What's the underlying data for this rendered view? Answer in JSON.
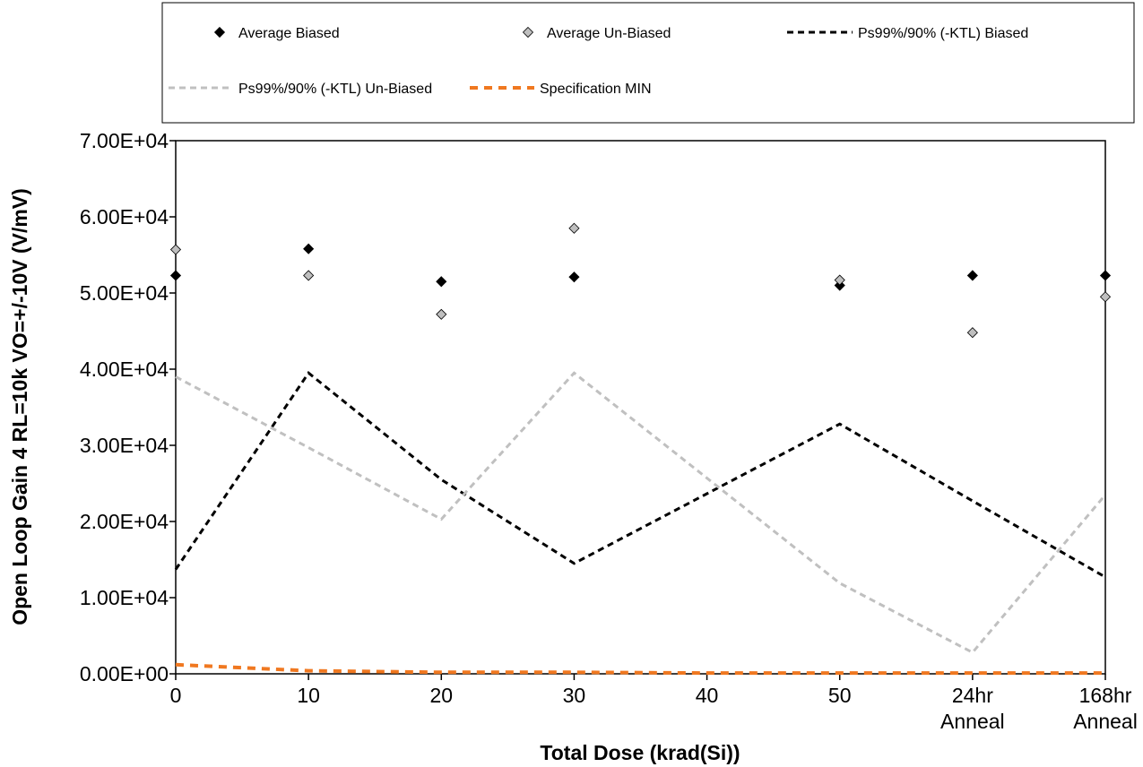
{
  "chart_data": {
    "type": "line",
    "xlabel": "Total Dose (krad(Si))",
    "ylabel": "Open Loop Gain 4 RL=10k VO=+/-10V (V/mV)",
    "categories": [
      [
        "0"
      ],
      [
        "10"
      ],
      [
        "20"
      ],
      [
        "30"
      ],
      [
        "40"
      ],
      [
        "50"
      ],
      [
        "24hr",
        "Anneal"
      ],
      [
        "168hr",
        "Anneal"
      ]
    ],
    "x_positions": [
      0,
      10,
      20,
      30,
      40,
      50,
      60,
      70
    ],
    "xlim": [
      0,
      70
    ],
    "ylim": [
      0,
      70000
    ],
    "yticks": [
      "0.00E+00",
      "1.00E+04",
      "2.00E+04",
      "3.00E+04",
      "4.00E+04",
      "5.00E+04",
      "6.00E+04",
      "7.00E+04"
    ],
    "ytick_values": [
      0,
      10000,
      20000,
      30000,
      40000,
      50000,
      60000,
      70000
    ],
    "grid": false,
    "legend_position": "top",
    "series": [
      {
        "name": "Average Biased",
        "style": "marker",
        "color": "#000000",
        "x": [
          0,
          10,
          20,
          30,
          50,
          60,
          70
        ],
        "y": [
          52300,
          55800,
          51500,
          52100,
          51000,
          52300,
          52300
        ]
      },
      {
        "name": "Average Un-Biased",
        "style": "marker",
        "color": "#bfbfbf",
        "x": [
          0,
          10,
          20,
          30,
          50,
          60,
          70
        ],
        "y": [
          55700,
          52300,
          47200,
          58500,
          51700,
          44800,
          49500
        ]
      },
      {
        "name": "Ps99%/90% (-KTL) Biased",
        "style": "dashed",
        "color": "#000000",
        "x": [
          0,
          10,
          20,
          30,
          50,
          60,
          70
        ],
        "y": [
          13700,
          39500,
          25500,
          14500,
          32800,
          22700,
          12700
        ]
      },
      {
        "name": "Ps99%/90% (-KTL) Un-Biased",
        "style": "dashed",
        "color": "#c0c0c0",
        "x": [
          0,
          10,
          20,
          30,
          50,
          60,
          70
        ],
        "y": [
          39000,
          29700,
          20300,
          39500,
          11900,
          2800,
          23500
        ]
      },
      {
        "name": "Specification MIN",
        "style": "dashed",
        "color": "#f07820",
        "x": [
          0,
          10,
          20,
          30,
          40,
          50,
          60,
          70
        ],
        "y": [
          1200,
          400,
          200,
          200,
          100,
          100,
          100,
          100
        ]
      }
    ]
  }
}
